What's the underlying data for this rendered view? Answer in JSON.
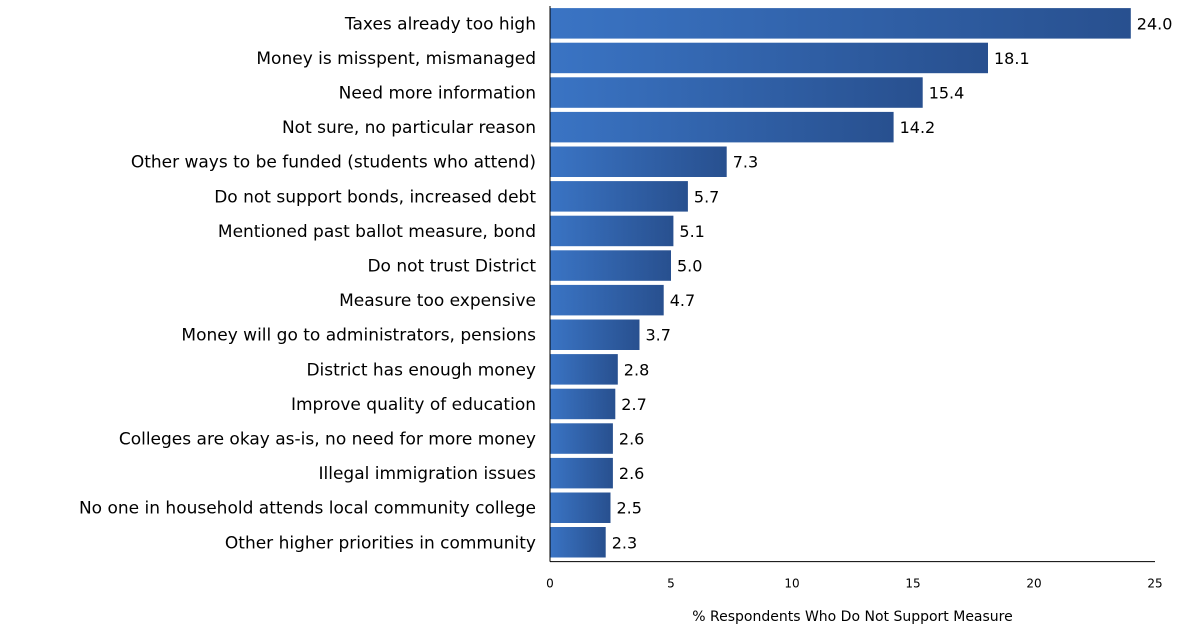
{
  "chart_data": {
    "type": "bar",
    "orientation": "horizontal",
    "title": "",
    "xlabel": "% Respondents Who Do Not Support Measure",
    "ylabel": "",
    "xlim": [
      0,
      25
    ],
    "x_ticks": [
      0,
      5,
      10,
      15,
      20,
      25
    ],
    "grid": false,
    "legend": "none",
    "bar_color": "#2f5fa3",
    "categories": [
      "Taxes already too high",
      "Money is misspent, mismanaged",
      "Need more information",
      "Not sure, no particular reason",
      "Other ways to be funded (students who attend)",
      "Do not support bonds, increased debt",
      "Mentioned past ballot measure, bond",
      "Do not trust District",
      "Measure too expensive",
      "Money will go to administrators, pensions",
      "District has enough money",
      "Improve quality of education",
      "Colleges are okay as-is, no need for more money",
      "Illegal immigration issues",
      "No one in household attends local community college",
      "Other higher priorities in community"
    ],
    "values": [
      24.0,
      18.1,
      15.4,
      14.2,
      7.3,
      5.7,
      5.1,
      5.0,
      4.7,
      3.7,
      2.8,
      2.7,
      2.6,
      2.6,
      2.5,
      2.3
    ],
    "value_labels": [
      "24.0",
      "18.1",
      "15.4",
      "14.2",
      "7.3",
      "5.7",
      "5.1",
      "5.0",
      "4.7",
      "3.7",
      "2.8",
      "2.7",
      "2.6",
      "2.6",
      "2.5",
      "2.3"
    ]
  }
}
